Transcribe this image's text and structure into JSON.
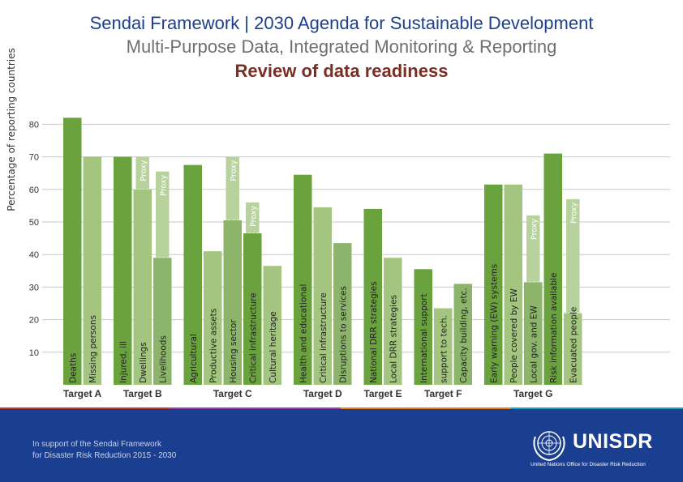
{
  "header": {
    "title": "Sendai Framework | 2030 Agenda for Sustainable Development",
    "subtitle": "Multi-Purpose Data, Integrated Monitoring & Reporting",
    "heading": "Review of data readiness"
  },
  "chart_data": {
    "type": "bar",
    "ylabel": "Percentage of reporting countries",
    "ylim": [
      0,
      82
    ],
    "yticks": [
      10,
      20,
      30,
      40,
      50,
      60,
      70,
      80
    ],
    "grid": true,
    "groups": [
      {
        "label": "Target A",
        "bars": [
          {
            "label": "Deaths",
            "value": 82
          },
          {
            "label": "Missing persons",
            "value": 70
          }
        ]
      },
      {
        "label": "Target B",
        "bars": [
          {
            "label": "Injured, ill",
            "value": 70
          },
          {
            "label": "Dwellings",
            "value": 60,
            "proxy": 70
          },
          {
            "label": "Livelihoods",
            "value": 39,
            "proxy": 65.5
          }
        ]
      },
      {
        "label": "Target C",
        "bars": [
          {
            "label": "Agricultural",
            "value": 67.5
          },
          {
            "label": "Productive assets",
            "value": 41
          },
          {
            "label": "Housing sector",
            "value": 50.5,
            "proxy": 70
          },
          {
            "label": "Critical infrastructure",
            "value": 46.5,
            "proxy": 56
          },
          {
            "label": "Cultural heritage",
            "value": 36.5
          }
        ]
      },
      {
        "label": "Target D",
        "bars": [
          {
            "label": "Health and educational",
            "value": 64.5
          },
          {
            "label": "Critical infrastructure",
            "value": 54.5
          },
          {
            "label": "Disruptions to services",
            "value": 43.5
          }
        ]
      },
      {
        "label": "Target E",
        "bars": [
          {
            "label": "National DRR strategies",
            "value": 54
          },
          {
            "label": "Local DRR strategies",
            "value": 39
          }
        ]
      },
      {
        "label": "Target F",
        "bars": [
          {
            "label": "International support",
            "value": 35.5
          },
          {
            "label": "support to tech.",
            "value": 23.5
          },
          {
            "label": "Capacity building, etc.",
            "value": 31
          }
        ]
      },
      {
        "label": "Target G",
        "bars": [
          {
            "label": "Early warning (EW) systems",
            "value": 61.5
          },
          {
            "label": "People covered by EW",
            "value": 61.5
          },
          {
            "label": "Local gov. and EW",
            "value": 31.5,
            "proxy": 52
          },
          {
            "label": "Risk information available",
            "value": 71
          },
          {
            "label": "Evacuated people",
            "value": 22,
            "proxy": 57
          }
        ]
      }
    ],
    "proxy_label": "Proxy",
    "colors": [
      "#6aa23e",
      "#a3c57f",
      "#8cb56b"
    ]
  },
  "footer": {
    "line1": "In support of the Sendai Framework",
    "line2": "for Disaster Risk Reduction 2015 - 2030",
    "logo": "UNISDR",
    "logo_sub": "United Nations Office for Disaster Risk Reduction",
    "stripe_colors": [
      "#c0392b",
      "#8e44ad",
      "#e67e22",
      "#16a0c4"
    ]
  }
}
